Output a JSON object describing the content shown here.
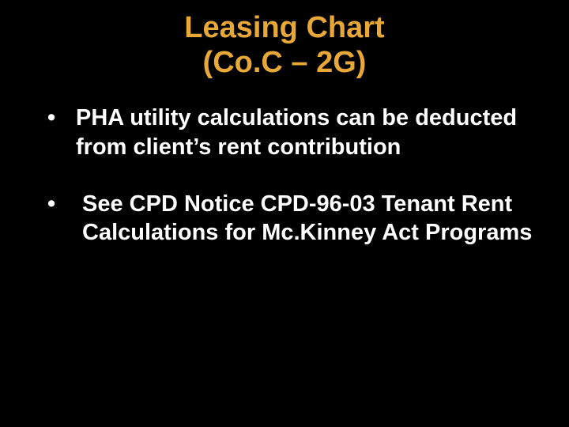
{
  "slide": {
    "background_color": "#000000",
    "title": {
      "line1": "Leasing Chart",
      "line2": "(Co.C – 2G)",
      "color": "#e8a838",
      "font_weight": "bold",
      "font_size_pt": 38,
      "align": "center"
    },
    "bullets": [
      {
        "text": "PHA utility calculations can be deducted from client’s rent contribution"
      },
      {
        "text": "See CPD Notice CPD-96-03 Tenant Rent Calculations for Mc.Kinney Act Programs"
      }
    ],
    "bullet_style": {
      "color": "#ffffff",
      "font_weight": "bold",
      "font_size_pt": 29,
      "marker": "•",
      "line_height": 1.25
    }
  }
}
